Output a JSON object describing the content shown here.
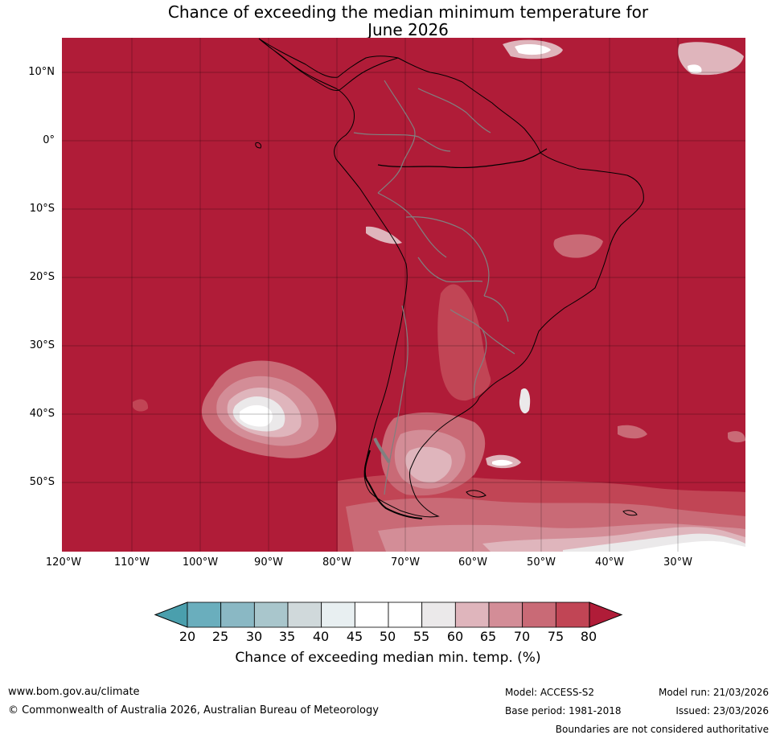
{
  "title_line1": "Chance of exceeding the median minimum temperature for",
  "title_line2": "June 2026",
  "lat_labels": [
    "10°N",
    "0°",
    "10°S",
    "20°S",
    "30°S",
    "40°S",
    "50°S"
  ],
  "lon_labels": [
    "120°W",
    "110°W",
    "100°W",
    "90°W",
    "80°W",
    "70°W",
    "60°W",
    "50°W",
    "40°W",
    "30°W"
  ],
  "colorbar": {
    "ticks": [
      "20",
      "25",
      "30",
      "35",
      "40",
      "45",
      "50",
      "55",
      "60",
      "65",
      "70",
      "75",
      "80"
    ],
    "colors": [
      "#4a9fad",
      "#6aaebd",
      "#8ab8c4",
      "#a9c6cc",
      "#d0d9db",
      "#e8eff1",
      "#ffffff",
      "#ffffff",
      "#ebe9ea",
      "#dfb5bc",
      "#d38d97",
      "#c96a76",
      "#c14555",
      "#b01c38"
    ],
    "label": "Chance of exceeding median min. temp. (%)"
  },
  "colors": {
    "ocean_high": "#b01c38",
    "level_75": "#c14555",
    "level_70": "#c96a76",
    "level_65": "#d38d97",
    "level_60": "#dfb5bc",
    "level_55": "#ebe9ea",
    "coast": "#000000",
    "borders": "#808080"
  },
  "footer": {
    "url": "www.bom.gov.au/climate",
    "copyright": "© Commonwealth of Australia 2026, Australian Bureau of Meteorology",
    "model": "Model: ACCESS-S2",
    "base_period": "Base period: 1981-2018",
    "model_run": "Model run: 21/03/2026",
    "issued": "Issued: 23/03/2026",
    "disclaimer": "Boundaries are not considered authoritative"
  }
}
